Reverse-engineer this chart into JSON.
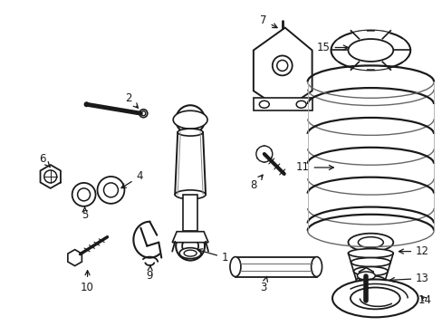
{
  "background_color": "#ffffff",
  "line_color": "#1a1a1a",
  "label_color": "#1a1a1a",
  "figsize": [
    4.89,
    3.6
  ],
  "dpi": 100
}
